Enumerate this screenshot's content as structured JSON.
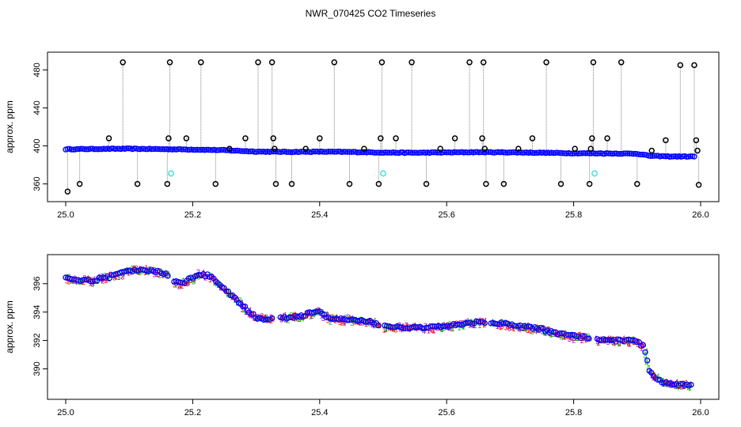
{
  "title": "NWR_070425  CO2 Timeseries",
  "colors": {
    "frame": "#000000",
    "main_points": "#0000ff",
    "spike_points": "#000000",
    "connector": "#808080",
    "flag_points": "#40e0e0",
    "marker_red": "#ff0000",
    "marker_green": "#00b000",
    "marker_purple": "#a000a0"
  },
  "chart_data": [
    {
      "type": "scatter",
      "ylabel": "approx. ppm",
      "xlim": [
        25.0,
        26.0
      ],
      "ylim": [
        348,
        492
      ],
      "x_ticks": [
        25.0,
        25.2,
        25.4,
        25.6,
        25.8,
        26.0
      ],
      "x_tick_labels": [
        "25.0",
        "25.2",
        "25.4",
        "25.6",
        "25.8",
        "26.0"
      ],
      "y_ticks": [
        360,
        400,
        440,
        480
      ],
      "y_tick_labels": [
        "360",
        "400",
        "440",
        "480"
      ],
      "baseline": {
        "x": [
          25.0,
          25.05,
          25.1,
          25.15,
          25.2,
          25.25,
          25.3,
          25.35,
          25.4,
          25.45,
          25.5,
          25.55,
          25.6,
          25.65,
          25.7,
          25.75,
          25.8,
          25.85,
          25.9,
          25.92,
          25.95,
          26.0
        ],
        "y": [
          396.5,
          396.8,
          397.0,
          396.6,
          396.2,
          395.5,
          394.0,
          393.7,
          393.9,
          393.6,
          393.0,
          392.8,
          393.1,
          393.4,
          393.2,
          392.8,
          392.3,
          392.1,
          391.8,
          389.5,
          388.9,
          388.8
        ]
      },
      "spikes": [
        {
          "x": 25.003,
          "y": 352
        },
        {
          "x": 25.022,
          "y": 360
        },
        {
          "x": 25.068,
          "y": 408
        },
        {
          "x": 25.09,
          "y": 488
        },
        {
          "x": 25.113,
          "y": 360
        },
        {
          "x": 25.16,
          "y": 360
        },
        {
          "x": 25.162,
          "y": 408
        },
        {
          "x": 25.164,
          "y": 488
        },
        {
          "x": 25.19,
          "y": 408
        },
        {
          "x": 25.213,
          "y": 488
        },
        {
          "x": 25.236,
          "y": 360
        },
        {
          "x": 25.258,
          "y": 397
        },
        {
          "x": 25.283,
          "y": 408
        },
        {
          "x": 25.303,
          "y": 488
        },
        {
          "x": 25.325,
          "y": 488
        },
        {
          "x": 25.327,
          "y": 408
        },
        {
          "x": 25.329,
          "y": 397
        },
        {
          "x": 25.331,
          "y": 360
        },
        {
          "x": 25.356,
          "y": 360
        },
        {
          "x": 25.378,
          "y": 397
        },
        {
          "x": 25.4,
          "y": 408
        },
        {
          "x": 25.423,
          "y": 488
        },
        {
          "x": 25.447,
          "y": 360
        },
        {
          "x": 25.47,
          "y": 397
        },
        {
          "x": 25.493,
          "y": 360
        },
        {
          "x": 25.496,
          "y": 408
        },
        {
          "x": 25.498,
          "y": 488
        },
        {
          "x": 25.52,
          "y": 408
        },
        {
          "x": 25.545,
          "y": 488
        },
        {
          "x": 25.568,
          "y": 360
        },
        {
          "x": 25.59,
          "y": 397
        },
        {
          "x": 25.613,
          "y": 408
        },
        {
          "x": 25.636,
          "y": 488
        },
        {
          "x": 25.656,
          "y": 408
        },
        {
          "x": 25.658,
          "y": 488
        },
        {
          "x": 25.66,
          "y": 397
        },
        {
          "x": 25.662,
          "y": 360
        },
        {
          "x": 25.69,
          "y": 360
        },
        {
          "x": 25.713,
          "y": 397
        },
        {
          "x": 25.735,
          "y": 408
        },
        {
          "x": 25.757,
          "y": 488
        },
        {
          "x": 25.78,
          "y": 360
        },
        {
          "x": 25.802,
          "y": 397
        },
        {
          "x": 25.825,
          "y": 360
        },
        {
          "x": 25.827,
          "y": 397
        },
        {
          "x": 25.829,
          "y": 408
        },
        {
          "x": 25.831,
          "y": 488
        },
        {
          "x": 25.853,
          "y": 408
        },
        {
          "x": 25.875,
          "y": 488
        },
        {
          "x": 25.9,
          "y": 360
        },
        {
          "x": 25.923,
          "y": 395
        },
        {
          "x": 25.945,
          "y": 406
        },
        {
          "x": 25.968,
          "y": 485
        },
        {
          "x": 25.99,
          "y": 485
        },
        {
          "x": 25.993,
          "y": 406
        },
        {
          "x": 25.995,
          "y": 395
        },
        {
          "x": 25.997,
          "y": 359
        }
      ],
      "flagged": [
        {
          "x": 25.166,
          "y": 371
        },
        {
          "x": 25.5,
          "y": 371
        },
        {
          "x": 25.833,
          "y": 371
        }
      ]
    },
    {
      "type": "scatter",
      "ylabel": "approx. ppm",
      "xlim": [
        25.0,
        26.0
      ],
      "ylim": [
        388.3,
        397.6
      ],
      "x_ticks": [
        25.0,
        25.2,
        25.4,
        25.6,
        25.8,
        26.0
      ],
      "x_tick_labels": [
        "25.0",
        "25.2",
        "25.4",
        "25.6",
        "25.8",
        "26.0"
      ],
      "y_ticks": [
        390,
        392,
        394,
        396
      ],
      "y_tick_labels": [
        "390",
        "392",
        "394",
        "396"
      ],
      "trace": {
        "x": [
          25.0,
          25.02,
          25.04,
          25.06,
          25.08,
          25.1,
          25.12,
          25.14,
          25.16,
          25.17,
          25.18,
          25.2,
          25.21,
          25.23,
          25.25,
          25.27,
          25.29,
          25.3,
          25.32,
          25.33,
          25.34,
          25.37,
          25.39,
          25.4,
          25.41,
          25.42,
          25.44,
          25.47,
          25.49,
          25.5,
          25.54,
          25.57,
          25.6,
          25.63,
          25.66,
          25.67,
          25.7,
          25.73,
          25.75,
          25.77,
          25.8,
          25.82,
          25.83,
          25.86,
          25.89,
          25.9,
          25.91,
          25.92,
          25.94,
          25.97,
          26.0
        ],
        "y": [
          396.4,
          396.3,
          396.2,
          396.4,
          396.6,
          396.9,
          397.0,
          396.9,
          396.6,
          396.2,
          396.0,
          396.4,
          396.7,
          396.5,
          395.6,
          394.8,
          394.0,
          393.6,
          393.5,
          393.5,
          393.6,
          393.7,
          394.0,
          394.1,
          393.7,
          393.5,
          393.5,
          393.4,
          393.2,
          393.0,
          392.9,
          392.9,
          393.0,
          393.2,
          393.3,
          393.3,
          393.1,
          392.9,
          392.8,
          392.5,
          392.3,
          392.2,
          392.1,
          392.0,
          392.0,
          391.9,
          391.6,
          389.8,
          389.0,
          388.9,
          388.8
        ]
      },
      "gaps": [
        [
          25.163,
          25.17
        ],
        [
          25.326,
          25.338
        ],
        [
          25.493,
          25.502
        ],
        [
          25.66,
          25.668
        ],
        [
          25.826,
          25.835
        ]
      ]
    }
  ]
}
